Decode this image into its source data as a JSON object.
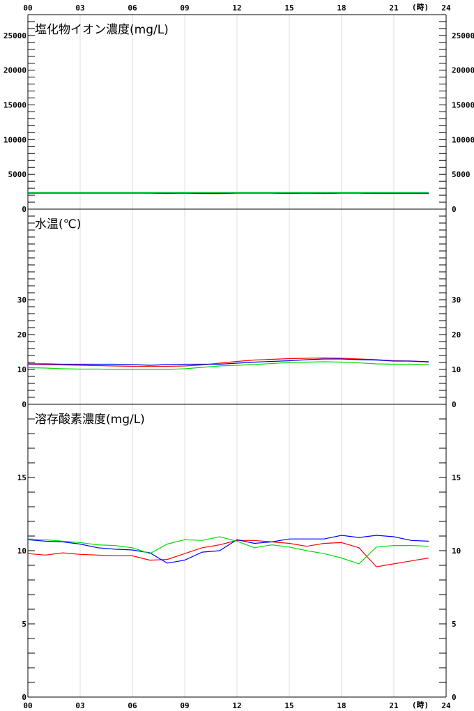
{
  "chart_data": {
    "type": "line",
    "x_unit_label": "(時)",
    "x_ticks": [
      "00",
      "03",
      "06",
      "09",
      "12",
      "15",
      "18",
      "21",
      "24"
    ],
    "xlim": [
      0,
      24
    ],
    "colors": {
      "series_1": "#ff0000",
      "series_2": "#0000ff",
      "series_3": "#00dd00"
    },
    "panels": [
      {
        "title": "塩化物イオン濃度(mg/L)",
        "ylim": [
          0,
          28000
        ],
        "y_ticks": [
          0,
          5000,
          10000,
          15000,
          20000,
          25000
        ],
        "x": [
          0,
          1,
          2,
          3,
          4,
          5,
          6,
          7,
          8,
          9,
          10,
          11,
          12,
          13,
          14,
          15,
          16,
          17,
          18,
          19,
          20,
          21,
          22,
          23
        ],
        "series": [
          {
            "values": [
              2300,
              2300,
              2300,
              2300,
              2300,
              2300,
              2300,
              2300,
              2250,
              2300,
              2250,
              2250,
              2300,
              2300,
              2300,
              2250,
              2300,
              2250,
              2300,
              2300,
              2250,
              2250,
              2250,
              2250
            ]
          },
          {
            "values": [
              2350,
              2350,
              2350,
              2350,
              2350,
              2350,
              2350,
              2350,
              2350,
              2350,
              2300,
              2300,
              2350,
              2350,
              2350,
              2350,
              2350,
              2350,
              2350,
              2350,
              2350,
              2350,
              2350,
              2350
            ]
          },
          {
            "values": [
              2400,
              2400,
              2400,
              2400,
              2400,
              2400,
              2400,
              2400,
              2400,
              2400,
              2400,
              2400,
              2400,
              2400,
              2400,
              2400,
              2400,
              2400,
              2400,
              2400,
              2400,
              2400,
              2400,
              2400
            ]
          }
        ]
      },
      {
        "title": "水温(℃)",
        "ylim": [
          0,
          56
        ],
        "y_ticks": [
          0,
          10,
          20,
          30
        ],
        "x": [
          0,
          1,
          2,
          3,
          4,
          5,
          6,
          7,
          8,
          9,
          10,
          11,
          12,
          13,
          14,
          15,
          16,
          17,
          18,
          19,
          20,
          21,
          22,
          23
        ],
        "series": [
          {
            "values": [
              11.5,
              11.4,
              11.3,
              11.2,
              11.1,
              11.0,
              10.9,
              10.9,
              10.9,
              11.0,
              11.3,
              11.8,
              12.3,
              12.7,
              12.9,
              13.1,
              13.2,
              13.3,
              13.2,
              13.0,
              12.8,
              12.5,
              12.4,
              12.1
            ]
          },
          {
            "values": [
              11.6,
              11.6,
              11.5,
              11.5,
              11.5,
              11.5,
              11.4,
              11.2,
              11.4,
              11.5,
              11.5,
              11.5,
              11.8,
              12.1,
              12.3,
              12.5,
              12.8,
              13.0,
              13.0,
              12.8,
              12.7,
              12.4,
              12.4,
              12.2
            ]
          },
          {
            "values": [
              10.5,
              10.4,
              10.2,
              10.1,
              10.1,
              10.0,
              10.0,
              10.0,
              10.0,
              10.2,
              10.6,
              11.0,
              11.2,
              11.4,
              11.7,
              12.0,
              12.1,
              12.2,
              12.1,
              11.9,
              11.6,
              11.5,
              11.5,
              11.4
            ]
          }
        ]
      },
      {
        "title": "溶存酸素濃度(mg/L)",
        "ylim": [
          0,
          20
        ],
        "y_ticks": [
          0,
          5,
          10,
          15
        ],
        "x": [
          0,
          1,
          2,
          3,
          4,
          5,
          6,
          7,
          8,
          9,
          10,
          11,
          12,
          13,
          14,
          15,
          16,
          17,
          18,
          19,
          20,
          21,
          22,
          23
        ],
        "series": [
          {
            "values": [
              9.8,
              9.7,
              9.85,
              9.75,
              9.7,
              9.65,
              9.65,
              9.35,
              9.4,
              9.8,
              10.2,
              10.4,
              10.7,
              10.7,
              10.6,
              10.5,
              10.3,
              10.5,
              10.55,
              10.2,
              8.9,
              9.1,
              9.3,
              9.5
            ]
          },
          {
            "values": [
              10.75,
              10.65,
              10.6,
              10.45,
              10.2,
              10.1,
              10.05,
              9.85,
              9.15,
              9.35,
              9.9,
              10.0,
              10.75,
              10.5,
              10.6,
              10.8,
              10.8,
              10.8,
              11.05,
              10.9,
              11.05,
              10.95,
              10.7,
              10.65
            ]
          },
          {
            "values": [
              10.8,
              10.75,
              10.65,
              10.55,
              10.4,
              10.35,
              10.2,
              9.8,
              10.45,
              10.75,
              10.7,
              10.95,
              10.65,
              10.2,
              10.4,
              10.25,
              10.0,
              9.8,
              9.5,
              9.1,
              10.25,
              10.35,
              10.35,
              10.3
            ]
          }
        ]
      }
    ]
  }
}
